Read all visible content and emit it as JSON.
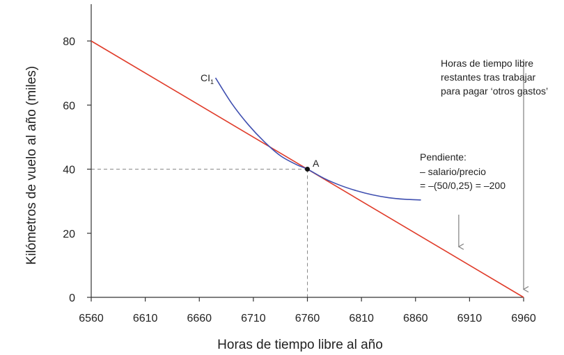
{
  "chart_data": {
    "type": "line",
    "title": "",
    "xlabel": "Horas de tiempo libre al año",
    "ylabel": "Kilómetros de vuelo al año (miles)",
    "xlim": [
      6560,
      6960
    ],
    "ylim": [
      0,
      90
    ],
    "xticks": [
      6560,
      6610,
      6660,
      6710,
      6760,
      6810,
      6860,
      6910,
      6960
    ],
    "yticks": [
      0,
      20,
      40,
      60,
      80
    ],
    "grid": false,
    "series": [
      {
        "name": "budget-line",
        "color": "#e03c2a",
        "x": [
          6560,
          6960
        ],
        "y": [
          80,
          0
        ]
      },
      {
        "name": "indifference-curve",
        "label_main": "CI",
        "label_sub": "1",
        "color": "#3f4fb0",
        "x": [
          6675,
          6690,
          6705,
          6720,
          6735,
          6750,
          6760,
          6775,
          6790,
          6805,
          6820,
          6835,
          6850,
          6865
        ],
        "y": [
          68.5,
          60.5,
          54.0,
          48.6,
          44.2,
          41.4,
          40.0,
          37.2,
          35.0,
          33.3,
          32.0,
          31.1,
          30.6,
          30.4
        ]
      }
    ],
    "point": {
      "label": "A",
      "x": 6760,
      "y": 40
    },
    "annotations": {
      "slope": {
        "lines": [
          "Pendiente:",
          "– salario/precio",
          "= –(50/0,25) = –200"
        ],
        "arrow_from": [
          6900,
          25.8
        ],
        "arrow_to": [
          6900,
          15.8
        ]
      },
      "leisure": {
        "lines": [
          "Horas de tiempo libre",
          "restantes tras trabajar",
          "para pagar ‘otros gastos’"
        ],
        "arrow_from": [
          6960,
          74.3
        ],
        "arrow_to": [
          6960,
          2.5
        ]
      }
    },
    "colors": {
      "axis": "#333333",
      "guide": "#888888",
      "arrow": "#888888",
      "point": "#111111"
    }
  }
}
